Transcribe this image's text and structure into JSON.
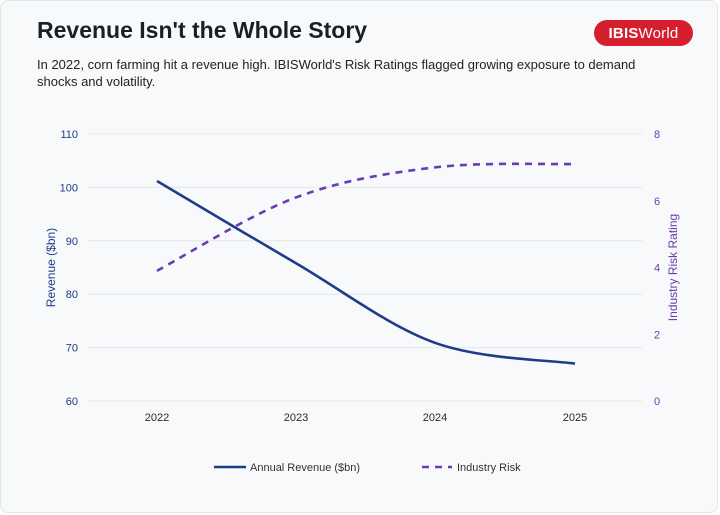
{
  "header": {
    "title": "Revenue Isn't the Whole Story",
    "subtitle": "In 2022, corn farming hit a revenue high. IBISWorld's Risk Ratings flagged growing exposure to demand shocks and volatility.",
    "logo_text_bold": "IBIS",
    "logo_text_regular": "World"
  },
  "colors": {
    "revenue": "#1f3c88",
    "risk": "#6a3bb5",
    "logo": "#d51f2e"
  },
  "chart_data": {
    "type": "line",
    "x": [
      "2022",
      "2023",
      "2024",
      "2025"
    ],
    "series": [
      {
        "name": "Annual Revenue ($bn)",
        "axis": "left",
        "style": "solid",
        "values": [
          101.2,
          85.8,
          70.9,
          67.0
        ]
      },
      {
        "name": "Industry Risk",
        "axis": "right",
        "style": "dashed",
        "values": [
          3.9,
          6.1,
          7.0,
          7.1
        ]
      }
    ],
    "ylabel_left": "Revenue ($bn)",
    "ylabel_right": "Industry Risk Rating",
    "ylim_left": [
      60,
      110
    ],
    "yticks_left": [
      "60",
      "70",
      "80",
      "90",
      "100",
      "110"
    ],
    "ylim_right": [
      0,
      8
    ],
    "yticks_right": [
      "0",
      "2",
      "4",
      "6",
      "8"
    ],
    "grid": "horizontal",
    "legend": "bottom"
  }
}
